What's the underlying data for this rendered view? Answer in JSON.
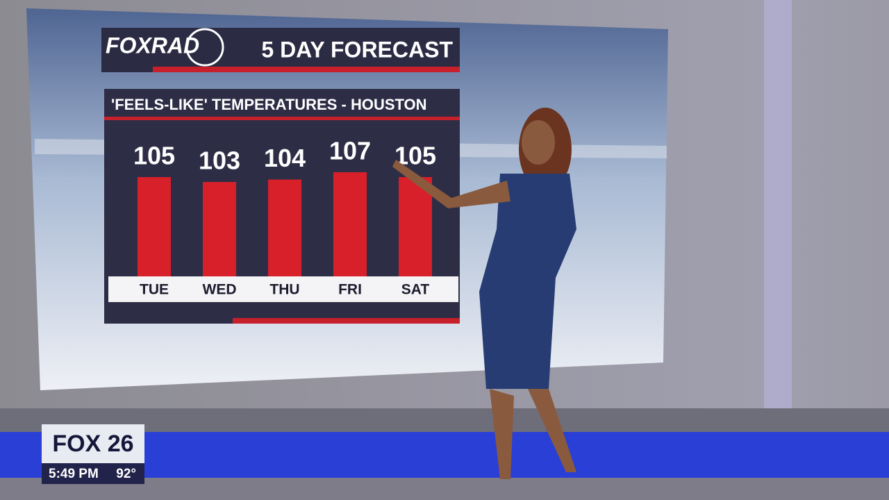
{
  "header": {
    "logo": "FOXRAD",
    "title": "5 DAY FORECAST"
  },
  "chart_data": {
    "type": "bar",
    "title": "'FEELS-LIKE' TEMPERATURES - HOUSTON",
    "categories": [
      "TUE",
      "WED",
      "THU",
      "FRI",
      "SAT"
    ],
    "values": [
      105,
      103,
      104,
      107,
      105
    ],
    "color": "#d7202a"
  },
  "station": {
    "logo": "FOX 26",
    "time": "5:49 PM",
    "temperature": "92°"
  }
}
